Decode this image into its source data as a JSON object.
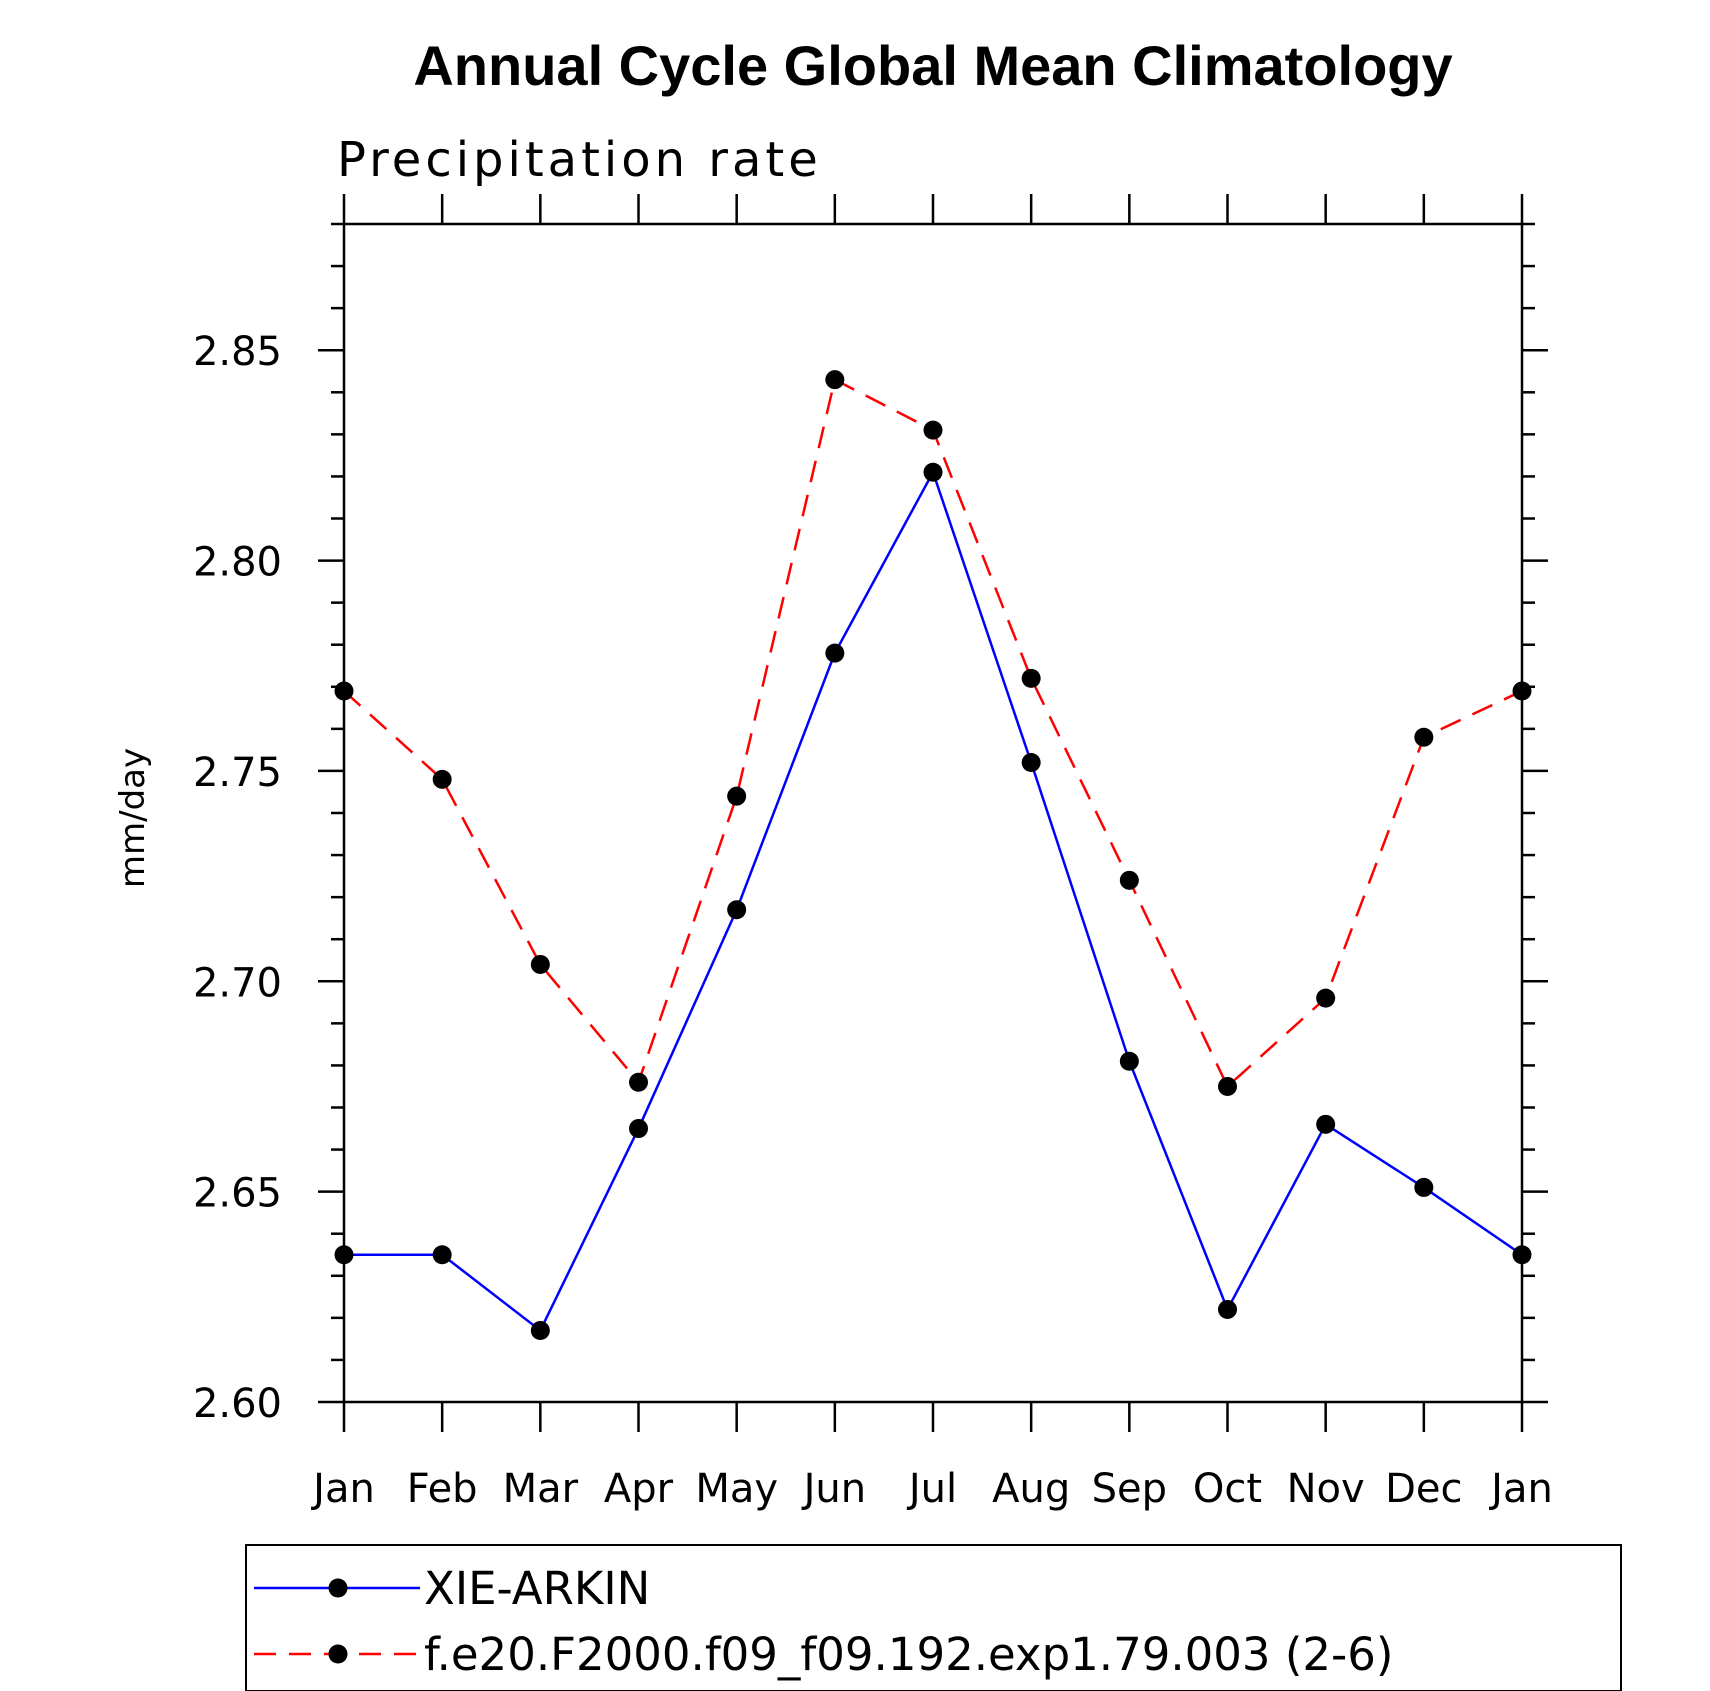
{
  "chart_data": {
    "type": "line",
    "title": "Annual Cycle Global Mean Climatology",
    "subtitle": "Precipitation rate",
    "xlabel": "",
    "ylabel": "mm/day",
    "categories": [
      "Jan",
      "Feb",
      "Mar",
      "Apr",
      "May",
      "Jun",
      "Jul",
      "Aug",
      "Sep",
      "Oct",
      "Nov",
      "Dec",
      "Jan"
    ],
    "ylim": [
      2.6,
      2.88
    ],
    "yticks": [
      "2.60",
      "2.65",
      "2.70",
      "2.75",
      "2.80",
      "2.85"
    ],
    "series": [
      {
        "name": "XIE-ARKIN",
        "color": "#0000ff",
        "style": "solid",
        "marker": "filled-circle",
        "values": [
          2.635,
          2.635,
          2.617,
          2.665,
          2.717,
          2.778,
          2.821,
          2.752,
          2.681,
          2.622,
          2.666,
          2.651,
          2.635
        ]
      },
      {
        "name": "f.e20.F2000.f09_f09.192.exp1.79.003 (2-6)",
        "color": "#ff0000",
        "style": "dashed",
        "marker": "filled-circle",
        "values": [
          2.769,
          2.748,
          2.704,
          2.676,
          2.744,
          2.843,
          2.831,
          2.772,
          2.724,
          2.675,
          2.696,
          2.758,
          2.769
        ]
      }
    ],
    "legend_position": "bottom",
    "grid": false
  }
}
